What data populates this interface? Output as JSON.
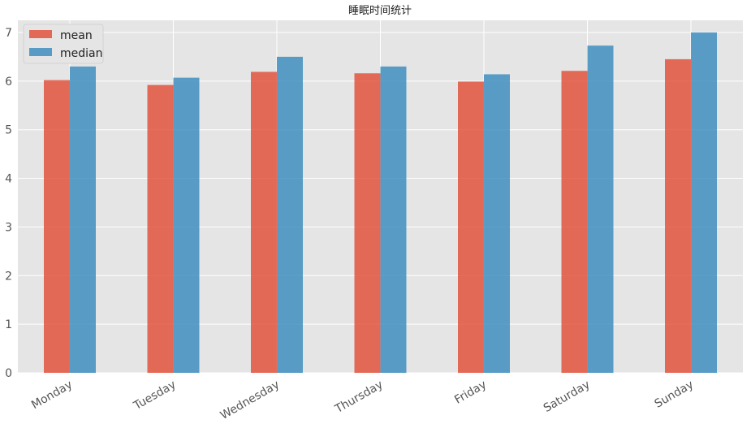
{
  "chart_data": {
    "type": "bar",
    "title": "睡眠时间统计",
    "xlabel": "",
    "ylabel": "",
    "categories": [
      "Monday",
      "Tuesday",
      "Wednesday",
      "Thursday",
      "Friday",
      "Saturday",
      "Sunday"
    ],
    "series": [
      {
        "name": "mean",
        "values": [
          6.02,
          5.92,
          6.19,
          6.16,
          5.99,
          6.21,
          6.45
        ],
        "color": "#E24A33"
      },
      {
        "name": "median",
        "values": [
          6.3,
          6.07,
          6.5,
          6.3,
          6.14,
          6.73,
          7.0
        ],
        "color": "#348ABD"
      }
    ],
    "ylim": [
      0,
      7.25
    ],
    "yticks": [
      0,
      1,
      2,
      3,
      4,
      5,
      6,
      7
    ],
    "grid": true,
    "legend": "top-left",
    "background": "#E5E5E5",
    "grid_color": "#FFFFFF"
  }
}
